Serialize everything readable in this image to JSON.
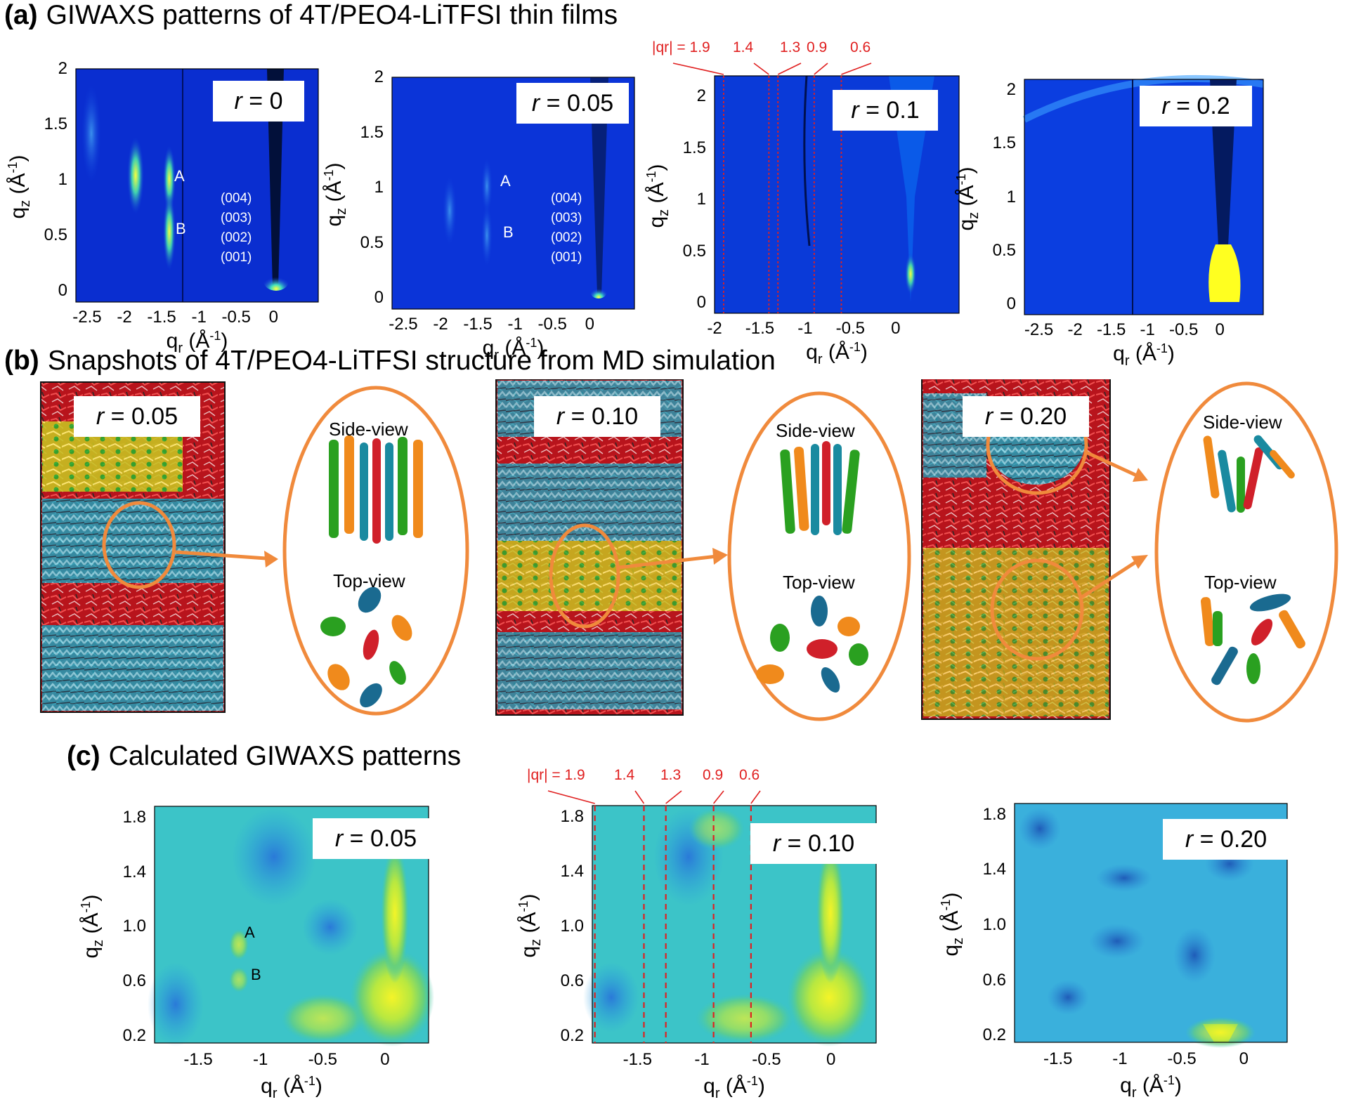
{
  "section_a": {
    "tag": "(a)",
    "title": "GIWAXS patterns of 4T/PEO4-LiTFSI thin films"
  },
  "section_b": {
    "tag": "(b)",
    "title": "Snapshots of 4T/PEO4-LiTFSI structure from MD simulation"
  },
  "section_c": {
    "tag": "(c)",
    "title": "Calculated GIWAXS patterns"
  },
  "panels_a": [
    {
      "r": "0",
      "xticks": [
        "-2.5",
        "-2",
        "-1.5",
        "-1",
        "-0.5",
        "0"
      ],
      "yticks": [
        "0",
        "0.5",
        "1",
        "1.5",
        "2"
      ],
      "peaks": [
        "A",
        "B"
      ],
      "orders": [
        "(004)",
        "(003)",
        "(002)",
        "(001)"
      ]
    },
    {
      "r": "0.05",
      "xticks": [
        "-2.5",
        "-2",
        "-1.5",
        "-1",
        "-0.5",
        "0"
      ],
      "yticks": [
        "0",
        "0.5",
        "1",
        "1.5",
        "2"
      ],
      "peaks": [
        "A",
        "B"
      ],
      "orders": [
        "(004)",
        "(003)",
        "(002)",
        "(001)"
      ]
    },
    {
      "r": "0.1",
      "xticks": [
        "-2",
        "-1.5",
        "-1",
        "-0.5",
        "0"
      ],
      "yticks": [
        "0",
        "0.5",
        "1",
        "1.5",
        "2"
      ],
      "marks": [
        "|qr| = 1.9",
        "1.4",
        "1.3",
        "0.9",
        "0.6"
      ]
    },
    {
      "r": "0.2",
      "xticks": [
        "-2.5",
        "-2",
        "-1.5",
        "-1",
        "-0.5",
        "0"
      ],
      "yticks": [
        "0",
        "0.5",
        "1",
        "1.5",
        "2"
      ]
    }
  ],
  "axis_labels": {
    "x": "qr (Å-1)",
    "y": "qz (Å-1)"
  },
  "snapshots": [
    {
      "r": "0.05",
      "side": "Side-view",
      "top": "Top-view"
    },
    {
      "r": "0.10",
      "side": "Side-view",
      "top": "Top-view"
    },
    {
      "r": "0.20",
      "side": "Side-view",
      "top": "Top-view"
    }
  ],
  "panels_c": [
    {
      "r": "0.05",
      "xticks": [
        "-1.5",
        "-1",
        "-0.5",
        "0"
      ],
      "yticks": [
        "0.2",
        "0.6",
        "1.0",
        "1.4",
        "1.8"
      ],
      "peaks": [
        "A",
        "B"
      ]
    },
    {
      "r": "0.10",
      "xticks": [
        "-1.5",
        "-1",
        "-0.5",
        "0"
      ],
      "yticks": [
        "0.2",
        "0.6",
        "1.0",
        "1.4",
        "1.8"
      ],
      "marks": [
        "|qr| = 1.9",
        "1.4",
        "1.3",
        "0.9",
        "0.6"
      ]
    },
    {
      "r": "0.20",
      "xticks": [
        "-1.5",
        "-1",
        "-0.5",
        "0"
      ],
      "yticks": [
        "0.2",
        "0.6",
        "1.0",
        "1.4",
        "1.8"
      ]
    }
  ],
  "colors": {
    "orange": "#f08a3c",
    "red_marks": "#e02020",
    "cyan": "#2ab0c8",
    "mol_red": "#d0202a"
  }
}
